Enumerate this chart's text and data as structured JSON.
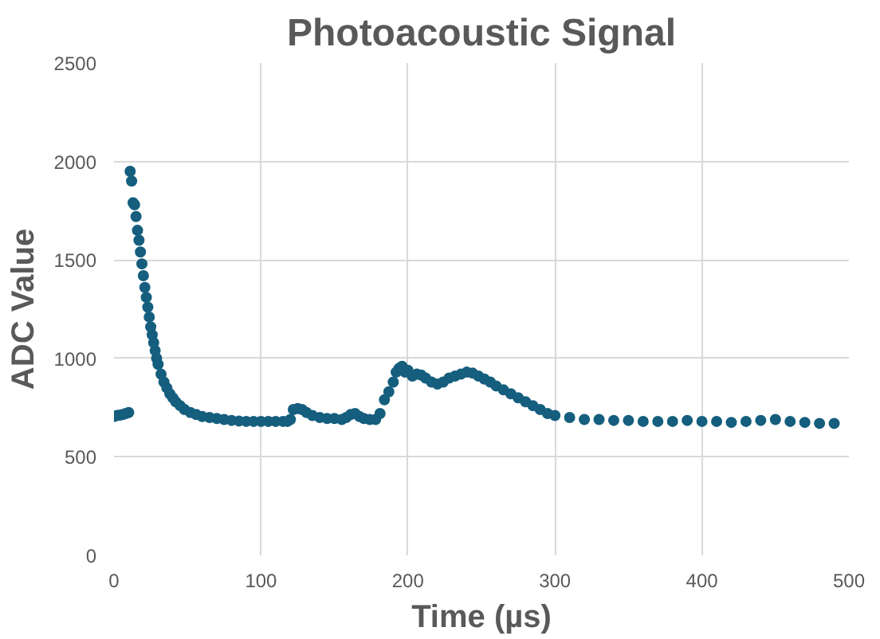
{
  "chart_data": {
    "type": "scatter",
    "title": "Photoacoustic Signal",
    "xlabel": "Time (µs)",
    "ylabel": "ADC Value",
    "xlim": [
      0,
      500
    ],
    "ylim": [
      0,
      2500
    ],
    "xticks": [
      0,
      100,
      200,
      300,
      400,
      500
    ],
    "yticks": [
      0,
      500,
      1000,
      1500,
      2000,
      2500
    ],
    "grid": true,
    "marker": "circle",
    "series": [
      {
        "color": "#155e7e",
        "x": [
          0,
          2,
          4,
          6,
          8,
          10,
          11,
          12,
          13,
          14,
          15,
          16,
          17,
          18,
          19,
          20,
          21,
          22,
          23,
          24,
          25,
          26,
          27,
          28,
          29,
          30,
          32,
          34,
          36,
          38,
          40,
          42,
          45,
          48,
          52,
          56,
          60,
          65,
          70,
          75,
          80,
          85,
          90,
          95,
          100,
          105,
          110,
          115,
          118,
          120,
          122,
          125,
          128,
          131,
          135,
          140,
          145,
          150,
          155,
          158,
          161,
          164,
          167,
          170,
          174,
          178,
          181,
          184,
          187,
          190,
          192,
          194,
          196,
          198,
          200,
          203,
          206,
          209,
          212,
          216,
          220,
          224,
          228,
          232,
          236,
          240,
          244,
          248,
          252,
          256,
          260,
          265,
          270,
          275,
          280,
          285,
          290,
          295,
          300,
          310,
          320,
          330,
          340,
          350,
          360,
          370,
          380,
          390,
          400,
          410,
          420,
          430,
          440,
          450,
          460,
          470,
          480,
          490
        ],
        "values": [
          705,
          710,
          712,
          715,
          720,
          725,
          1950,
          1900,
          1790,
          1780,
          1720,
          1650,
          1600,
          1540,
          1480,
          1420,
          1360,
          1310,
          1260,
          1210,
          1160,
          1120,
          1080,
          1040,
          1000,
          970,
          920,
          880,
          850,
          820,
          800,
          780,
          760,
          740,
          725,
          715,
          705,
          700,
          695,
          690,
          685,
          682,
          680,
          680,
          680,
          680,
          680,
          680,
          680,
          690,
          740,
          745,
          740,
          725,
          710,
          700,
          695,
          695,
          690,
          700,
          715,
          720,
          705,
          695,
          690,
          690,
          720,
          790,
          830,
          880,
          930,
          950,
          960,
          930,
          940,
          910,
          920,
          915,
          900,
          880,
          870,
          880,
          900,
          910,
          920,
          930,
          925,
          910,
          895,
          880,
          860,
          840,
          820,
          800,
          780,
          760,
          740,
          720,
          710,
          700,
          690,
          690,
          685,
          685,
          680,
          680,
          680,
          685,
          680,
          680,
          675,
          680,
          685,
          690,
          680,
          675,
          670,
          670
        ]
      }
    ]
  }
}
